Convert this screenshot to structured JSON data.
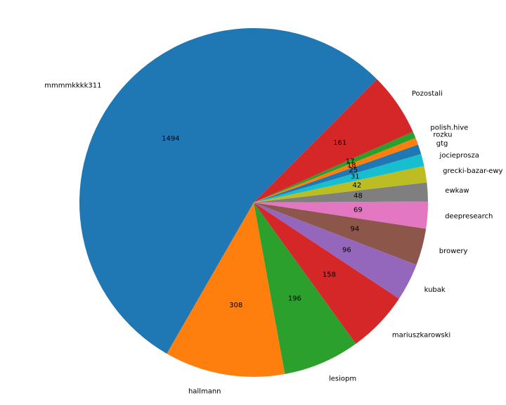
{
  "chart_data": {
    "type": "pie",
    "title": "",
    "start_angle_deg": 45,
    "direction": "counterclockwise",
    "slices": [
      {
        "label": "mmmmkkkk311",
        "value": 1494,
        "color": "#1f77b4"
      },
      {
        "label": "hallmann",
        "value": 308,
        "color": "#ff7f0e"
      },
      {
        "label": "lesiopm",
        "value": 196,
        "color": "#2ca02c"
      },
      {
        "label": "mariuszkarowski",
        "value": 158,
        "color": "#d62728"
      },
      {
        "label": "kubak",
        "value": 96,
        "color": "#9467bd"
      },
      {
        "label": "browery",
        "value": 94,
        "color": "#8c564b"
      },
      {
        "label": "deepresearch",
        "value": 69,
        "color": "#e377c2"
      },
      {
        "label": "ewkaw",
        "value": 48,
        "color": "#7f7f7f"
      },
      {
        "label": "grecki-bazar-ewy",
        "value": 42,
        "color": "#bcbd22"
      },
      {
        "label": "jocieprosza",
        "value": 31,
        "color": "#17becf"
      },
      {
        "label": "gtg",
        "value": 25,
        "color": "#1f77b4"
      },
      {
        "label": "rozku",
        "value": 18,
        "color": "#ff7f0e"
      },
      {
        "label": "polish.hive",
        "value": 17,
        "color": "#2ca02c"
      },
      {
        "label": "Pozostali",
        "value": 161,
        "color": "#d62728"
      }
    ]
  }
}
